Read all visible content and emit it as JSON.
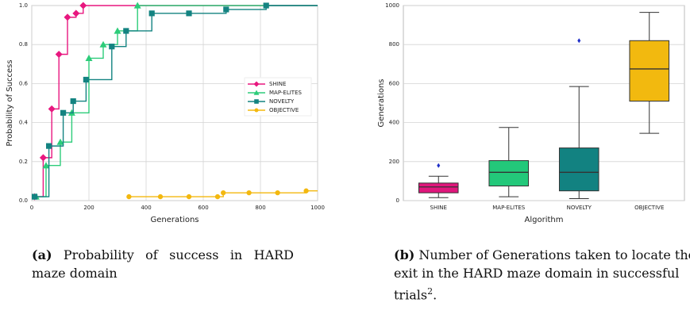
{
  "chart_data": [
    {
      "type": "line",
      "step": true,
      "xlabel": "Generations",
      "ylabel": "Probability of Success",
      "xlim": [
        0,
        1000
      ],
      "xticks": [
        0,
        200,
        400,
        600,
        800,
        1000
      ],
      "ylim": [
        0,
        1
      ],
      "yticks": [
        {
          "value": 0,
          "label": "0.0"
        },
        0.2,
        0.4,
        0.6,
        0.8,
        {
          "value": 1,
          "label": "1.0"
        }
      ],
      "grid": true,
      "legend": "right",
      "series": [
        {
          "name": "SHINE",
          "color": "#e8177f",
          "marker": "diamond",
          "x": [
            10,
            40,
            70,
            95,
            125,
            155,
            180
          ],
          "values": [
            0.02,
            0.22,
            0.47,
            0.75,
            0.94,
            0.96,
            1
          ]
        },
        {
          "name": "MAP-ELITES",
          "color": "#2dcc7a",
          "marker": "triangle",
          "x": [
            15,
            50,
            100,
            140,
            200,
            250,
            300,
            370
          ],
          "values": [
            0.02,
            0.18,
            0.3,
            0.45,
            0.73,
            0.8,
            0.87,
            1
          ]
        },
        {
          "name": "NOVELTY",
          "color": "#138381",
          "marker": "square",
          "x": [
            10,
            60,
            110,
            145,
            190,
            280,
            330,
            420,
            550,
            680,
            820
          ],
          "values": [
            0.02,
            0.28,
            0.45,
            0.51,
            0.62,
            0.79,
            0.87,
            0.96,
            0.96,
            0.98,
            1
          ]
        },
        {
          "name": "OBJECTIVE",
          "color": "#f3b80f",
          "marker": "circle",
          "x": [
            340,
            450,
            550,
            650,
            670,
            760,
            860,
            960
          ],
          "values": [
            0.02,
            0.02,
            0.02,
            0.02,
            0.04,
            0.04,
            0.04,
            0.05
          ]
        }
      ]
    },
    {
      "type": "box",
      "xlabel": "Algorithm",
      "ylabel": "Generations",
      "ylim": [
        0,
        1000
      ],
      "yticks": [
        0,
        200,
        400,
        600,
        800,
        1000
      ],
      "grid": true,
      "categories": [
        "SHINE",
        "MAP-ELITES",
        "NOVELTY",
        "OBJECTIVE"
      ],
      "colors": [
        "#e0167c",
        "#23c87a",
        "#128281",
        "#f2b90f"
      ],
      "outlier_color": "#1f2fc8",
      "boxes": [
        {
          "min": 15,
          "q1": 40,
          "median": 70,
          "q3": 90,
          "max": 125,
          "outliers": [
            180
          ]
        },
        {
          "min": 20,
          "q1": 75,
          "median": 145,
          "q3": 205,
          "max": 375,
          "outliers": []
        },
        {
          "min": 10,
          "q1": 50,
          "median": 145,
          "q3": 270,
          "max": 585,
          "outliers": [
            820
          ]
        },
        {
          "min": 345,
          "q1": 510,
          "median": 675,
          "q3": 820,
          "max": 965,
          "outliers": []
        }
      ]
    }
  ],
  "captions": [
    {
      "label": "(a)",
      "text": "Probability of success in HARD maze domain"
    },
    {
      "label": "(b)",
      "text": "Number of Generations taken to locate the exit in the HARD maze domain in successful trials",
      "sup": "2",
      "end": "."
    }
  ]
}
